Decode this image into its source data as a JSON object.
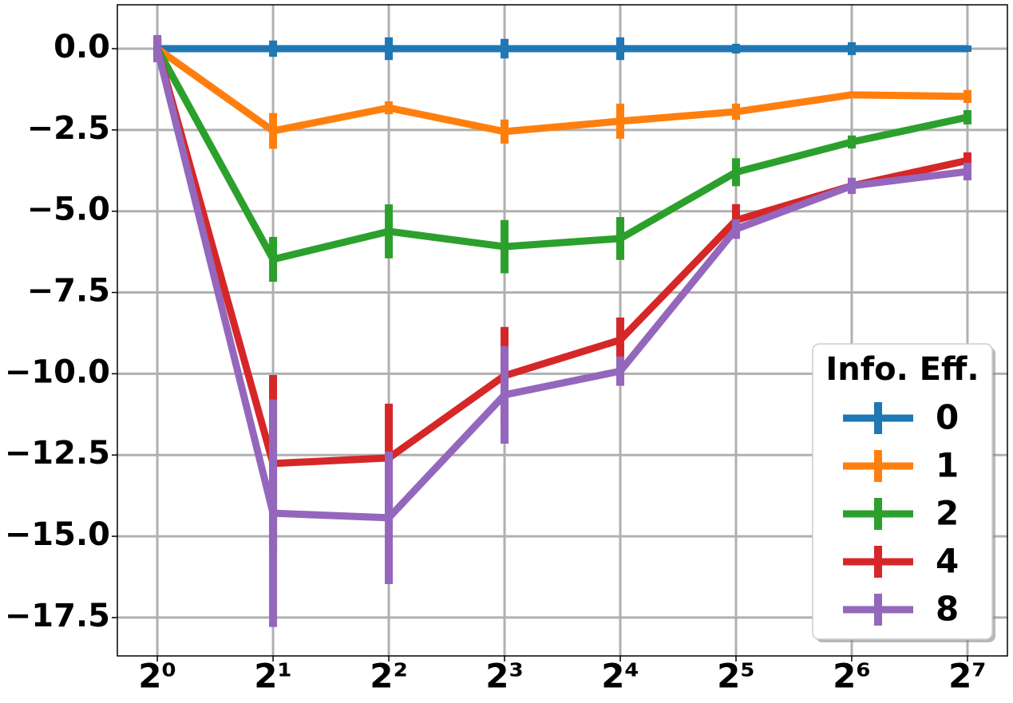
{
  "chart_data": {
    "type": "line",
    "x": [
      1,
      2,
      4,
      8,
      16,
      32,
      64,
      128
    ],
    "xscale": "log2",
    "xlim": [
      0.787,
      162.6
    ],
    "xticks": [
      {
        "value": 1,
        "label": "2⁰"
      },
      {
        "value": 2,
        "label": "2¹"
      },
      {
        "value": 4,
        "label": "2²"
      },
      {
        "value": 8,
        "label": "2³"
      },
      {
        "value": 16,
        "label": "2⁴"
      },
      {
        "value": 32,
        "label": "2⁵"
      },
      {
        "value": 64,
        "label": "2⁶"
      },
      {
        "value": 128,
        "label": "2⁷"
      }
    ],
    "ylim": [
      -18.68,
      1.35
    ],
    "yticks": [
      {
        "value": 0,
        "label": "0.0"
      },
      {
        "value": -2.5,
        "label": "−2.5"
      },
      {
        "value": -5,
        "label": "−5.0"
      },
      {
        "value": -7.5,
        "label": "−7.5"
      },
      {
        "value": -10,
        "label": "−10.0"
      },
      {
        "value": -12.5,
        "label": "−12.5"
      },
      {
        "value": -15,
        "label": "−15.0"
      },
      {
        "value": -17.5,
        "label": "−17.5"
      }
    ],
    "grid": true,
    "legend_title": "Info. Eff.",
    "legend_position": "lower right",
    "series": [
      {
        "name": "0",
        "color": "#1f77b4",
        "values": [
          0,
          0,
          0,
          0,
          0,
          0,
          0,
          0
        ],
        "errors": [
          0.4,
          0.25,
          0.35,
          0.3,
          0.35,
          0.15,
          0.2,
          0.1
        ]
      },
      {
        "name": "1",
        "color": "#ff7f0e",
        "values": [
          0,
          -2.53,
          -1.82,
          -2.55,
          -2.23,
          -1.94,
          -1.42,
          -1.47
        ],
        "errors": [
          0.3,
          0.55,
          0.2,
          0.37,
          0.54,
          0.25,
          0.1,
          0.2
        ]
      },
      {
        "name": "2",
        "color": "#2ca02c",
        "values": [
          0,
          -6.48,
          -5.62,
          -6.09,
          -5.84,
          -3.8,
          -2.87,
          -2.11
        ],
        "errors": [
          0.3,
          0.69,
          0.83,
          0.82,
          0.66,
          0.43,
          0.2,
          0.22
        ]
      },
      {
        "name": "4",
        "color": "#d62728",
        "values": [
          0,
          -12.76,
          -12.59,
          -10.06,
          -8.96,
          -5.28,
          -4.22,
          -3.44
        ],
        "errors": [
          0.3,
          2.72,
          1.67,
          1.5,
          0.69,
          0.5,
          0.2,
          0.25
        ]
      },
      {
        "name": "8",
        "color": "#9467bd",
        "values": [
          0,
          -14.29,
          -14.43,
          -10.65,
          -9.92,
          -5.55,
          -4.22,
          -3.78
        ],
        "errors": [
          0.42,
          3.5,
          2.04,
          1.5,
          0.45,
          0.3,
          0.25,
          0.27
        ]
      }
    ]
  }
}
